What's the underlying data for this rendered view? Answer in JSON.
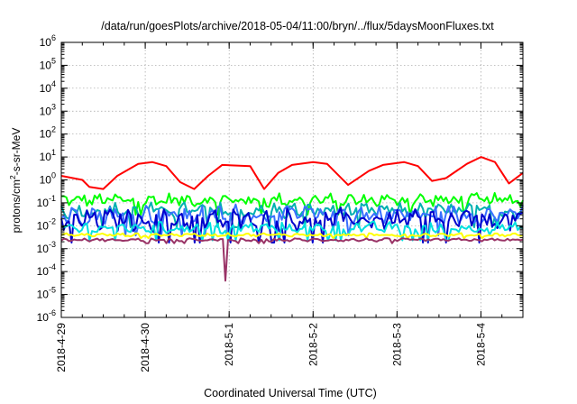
{
  "chart_data": {
    "type": "line",
    "title": "/data/run/goesPlots/archive/2018-05-04/11:00/bryn/../flux/5daysMoonFluxes.txt",
    "xlabel": "Coordinated Universal Time (UTC)",
    "ylabel": "protons/cm²-s-sr-MeV",
    "ylabel_parts": {
      "pre": "protons/cm",
      "sup": "2",
      "post": "-s-sr-MeV"
    },
    "yscale": "log",
    "ylim_exp": [
      -6,
      6
    ],
    "y_tick_exponents": [
      6,
      5,
      4,
      3,
      2,
      1,
      0,
      -1,
      -2,
      -3,
      -4,
      -5,
      -6
    ],
    "y_tick_base": "10",
    "xlim": [
      "2018-4-29",
      "2018-5-4 12:00"
    ],
    "x_ticks": [
      "2018-4-29",
      "2018-4-30",
      "2018-5-1",
      "2018-5-2",
      "2018-5-3",
      "2018-5-4"
    ],
    "grid": true,
    "legend": "none",
    "series": [
      {
        "color": "#ff0000",
        "x": [
          "2018-4-29 00:00",
          "2018-4-29 06:00",
          "2018-4-29 08:00",
          "2018-4-29 12:00",
          "2018-4-29 16:00",
          "2018-4-29 22:00",
          "2018-4-30 02:00",
          "2018-4-30 06:00",
          "2018-4-30 10:00",
          "2018-4-30 14:00",
          "2018-4-30 18:00",
          "2018-4-30 22:00",
          "2018-5-1 06:00",
          "2018-5-1 10:00",
          "2018-5-1 14:00",
          "2018-5-1 18:00",
          "2018-5-2 00:00",
          "2018-5-2 04:00",
          "2018-5-2 10:00",
          "2018-5-2 16:00",
          "2018-5-2 20:00",
          "2018-5-3 02:00",
          "2018-5-3 06:00",
          "2018-5-3 10:00",
          "2018-5-3 14:00",
          "2018-5-3 20:00",
          "2018-5-4 00:00",
          "2018-5-4 04:00",
          "2018-5-4 08:00",
          "2018-5-4 12:00"
        ],
        "y": [
          1.5,
          1.0,
          0.5,
          0.4,
          1.5,
          5.0,
          6.0,
          4.0,
          0.8,
          0.4,
          1.5,
          4.5,
          4.0,
          0.4,
          2.0,
          4.5,
          6.0,
          5.0,
          0.6,
          2.5,
          4.5,
          6.0,
          4.0,
          0.9,
          1.2,
          5.0,
          10.0,
          6.0,
          0.7,
          2.0
        ]
      },
      {
        "color": "#00ff00",
        "base": 0.13,
        "spread": 0.35
      },
      {
        "color": "#00b0b0",
        "base": 0.045,
        "spread": 0.4
      },
      {
        "color": "#3a70ff",
        "base": 0.03,
        "spread": 0.5
      },
      {
        "color": "#0000cc",
        "base": 0.018,
        "spread": 0.55
      },
      {
        "color": "#00e0e0",
        "base": 0.008,
        "spread": 0.3
      },
      {
        "color": "#ffff00",
        "base": 0.004,
        "spread": 0.08
      },
      {
        "color": "#993366",
        "base": 0.0024,
        "spread": 0.08,
        "spike": {
          "x": "2018-4-30 23:00",
          "y": 4e-05
        }
      }
    ]
  }
}
